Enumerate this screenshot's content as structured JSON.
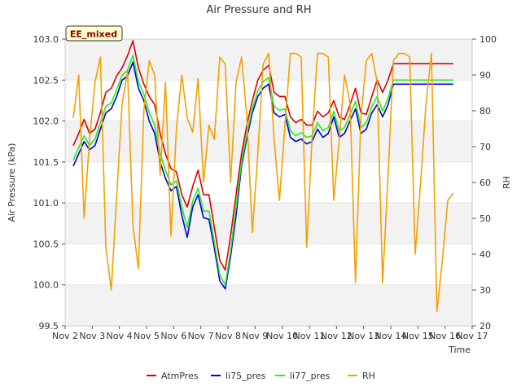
{
  "chart_data": {
    "type": "line",
    "title": "Air Pressure and RH",
    "badge": "EE_mixed",
    "xlabel": "Time",
    "ylabel_left": "Air Pressure (kPa)",
    "ylabel_right": "RH",
    "x_ticks": [
      "Nov 2",
      "Nov 3",
      "Nov 4",
      "Nov 5",
      "Nov 6",
      "Nov 7",
      "Nov 8",
      "Nov 9",
      "Nov 10",
      "Nov 11",
      "Nov 12",
      "Nov 13",
      "Nov 14",
      "Nov 15",
      "Nov 16",
      "Nov 17"
    ],
    "xlim_days": [
      2,
      17
    ],
    "ylim_left": [
      99.5,
      103.0
    ],
    "ylim_right": [
      20,
      100
    ],
    "y_ticks_left": [
      "99.5",
      "100.0",
      "100.5",
      "101.0",
      "101.5",
      "102.0",
      "102.5",
      "103.0"
    ],
    "y_ticks_right": [
      "20",
      "30",
      "40",
      "50",
      "60",
      "70",
      "80",
      "90",
      "100"
    ],
    "grid": "horizontal bands",
    "legend_position": "bottom",
    "x_days": [
      2.3,
      2.5,
      2.7,
      2.9,
      3.1,
      3.3,
      3.5,
      3.7,
      3.9,
      4.1,
      4.3,
      4.5,
      4.7,
      4.9,
      5.1,
      5.3,
      5.5,
      5.7,
      5.9,
      6.1,
      6.3,
      6.5,
      6.7,
      6.9,
      7.1,
      7.3,
      7.5,
      7.7,
      7.9,
      8.1,
      8.3,
      8.5,
      8.7,
      8.9,
      9.1,
      9.3,
      9.5,
      9.7,
      9.9,
      10.1,
      10.3,
      10.5,
      10.7,
      10.9,
      11.1,
      11.3,
      11.5,
      11.7,
      11.9,
      12.1,
      12.3,
      12.5,
      12.7,
      12.9,
      13.1,
      13.3,
      13.5,
      13.7,
      13.9,
      14.1,
      14.3,
      14.5,
      14.7,
      14.9,
      15.1,
      15.3,
      15.5,
      15.7,
      15.9,
      16.1,
      16.3
    ],
    "series": [
      {
        "name": "AtmPres",
        "axis": "left",
        "color": "#dd0000",
        "values": [
          101.7,
          101.85,
          102.02,
          101.85,
          101.9,
          102.1,
          102.35,
          102.4,
          102.55,
          102.65,
          102.8,
          102.98,
          102.65,
          102.45,
          102.3,
          102.2,
          101.85,
          101.6,
          101.42,
          101.38,
          101.1,
          100.95,
          101.2,
          101.4,
          101.1,
          101.1,
          100.7,
          100.3,
          100.18,
          100.6,
          101.1,
          101.6,
          101.95,
          102.25,
          102.5,
          102.62,
          102.68,
          102.35,
          102.3,
          102.3,
          102.05,
          101.98,
          102.02,
          101.95,
          101.95,
          102.12,
          102.05,
          102.1,
          102.25,
          102.05,
          102.02,
          102.2,
          102.4,
          102.1,
          102.08,
          102.3,
          102.5,
          102.35,
          102.5,
          102.7,
          102.7,
          102.7,
          102.7,
          102.7,
          102.7,
          102.7,
          102.7,
          102.7,
          102.7,
          102.7,
          102.7
        ]
      },
      {
        "name": "li75_pres",
        "axis": "left",
        "color": "#0000dd",
        "values": [
          101.45,
          101.6,
          101.75,
          101.65,
          101.7,
          101.9,
          102.1,
          102.15,
          102.3,
          102.5,
          102.55,
          102.72,
          102.4,
          102.25,
          102.0,
          101.85,
          101.5,
          101.3,
          101.15,
          101.2,
          100.85,
          100.58,
          100.95,
          101.1,
          100.82,
          100.8,
          100.45,
          100.05,
          99.95,
          100.35,
          100.85,
          101.45,
          101.8,
          102.1,
          102.3,
          102.4,
          102.45,
          102.1,
          102.05,
          102.08,
          101.8,
          101.75,
          101.78,
          101.72,
          101.75,
          101.9,
          101.8,
          101.85,
          102.05,
          101.8,
          101.85,
          102.0,
          102.15,
          101.85,
          101.9,
          102.1,
          102.2,
          102.05,
          102.2,
          102.45,
          102.45,
          102.45,
          102.45,
          102.45,
          102.45,
          102.45,
          102.45,
          102.45,
          102.45,
          102.45,
          102.45
        ]
      },
      {
        "name": "li77_pres",
        "axis": "left",
        "color": "#22ee22",
        "values": [
          101.52,
          101.68,
          101.82,
          101.7,
          101.78,
          101.98,
          102.18,
          102.22,
          102.38,
          102.56,
          102.62,
          102.8,
          102.48,
          102.33,
          102.1,
          101.95,
          101.6,
          101.4,
          101.22,
          101.27,
          100.95,
          100.7,
          101.02,
          101.18,
          100.9,
          100.9,
          100.52,
          100.12,
          100.0,
          100.42,
          100.95,
          101.5,
          101.85,
          102.15,
          102.37,
          102.48,
          102.53,
          102.18,
          102.13,
          102.15,
          101.88,
          101.82,
          101.86,
          101.8,
          101.82,
          101.98,
          101.88,
          101.92,
          102.12,
          101.88,
          101.92,
          102.08,
          102.24,
          101.92,
          101.98,
          102.18,
          102.3,
          102.12,
          102.28,
          102.5,
          102.5,
          102.5,
          102.5,
          102.5,
          102.5,
          102.5,
          102.5,
          102.5,
          102.5,
          102.5,
          102.5
        ]
      },
      {
        "name": "RH",
        "axis": "right",
        "color": "#f5a000",
        "values": [
          78,
          90,
          50,
          72,
          88,
          95,
          42,
          30,
          56,
          82,
          91,
          48,
          36,
          80,
          94,
          90,
          62,
          88,
          45,
          75,
          90,
          78,
          74,
          89,
          60,
          76,
          72,
          95,
          93,
          60,
          88,
          95,
          78,
          46,
          68,
          93,
          96,
          72,
          55,
          76,
          96,
          96,
          95,
          42,
          72,
          96,
          96,
          95,
          55,
          72,
          90,
          82,
          32,
          78,
          94,
          96,
          88,
          32,
          62,
          94,
          96,
          96,
          95,
          40,
          60,
          82,
          96,
          24,
          38,
          55,
          57
        ]
      }
    ]
  }
}
